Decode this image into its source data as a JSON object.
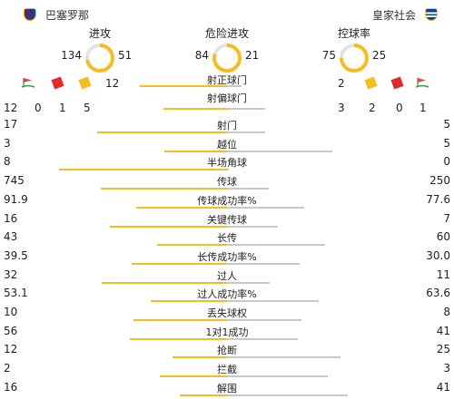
{
  "home_team": {
    "name": "巴塞罗那",
    "crest": "fc-barcelona-crest-icon"
  },
  "away_team": {
    "name": "皇家社会",
    "crest": "real-sociedad-crest-icon"
  },
  "colors": {
    "home": "#f5bd1f",
    "away": "#c8c8c8",
    "gauge_track": "#e3e3e3"
  },
  "gauges": [
    {
      "label": "进攻",
      "home": 134,
      "away": 51
    },
    {
      "label": "危险进攻",
      "home": 84,
      "away": 21
    },
    {
      "label": "控球率",
      "home": 75,
      "away": 25
    }
  ],
  "shots_on_target": {
    "label": "射正球门",
    "home": 12,
    "away": 2
  },
  "shots_off_target": {
    "label": "射偏球门",
    "home": 5,
    "away": 3
  },
  "cards_corners": {
    "home": {
      "corners": 12,
      "red": 0,
      "yellow": 1
    },
    "away": {
      "corners": 1,
      "red": 0,
      "yellow": 2
    }
  },
  "stats": [
    {
      "label": "射门",
      "home": "17",
      "away": "5"
    },
    {
      "label": "越位",
      "home": "3",
      "away": "5"
    },
    {
      "label": "半场角球",
      "home": "8",
      "away": "0"
    },
    {
      "label": "传球",
      "home": "745",
      "away": "250"
    },
    {
      "label": "传球成功率%",
      "home": "91.9",
      "away": "77.6"
    },
    {
      "label": "关键传球",
      "home": "16",
      "away": "7"
    },
    {
      "label": "长传",
      "home": "43",
      "away": "60"
    },
    {
      "label": "长传成功率%",
      "home": "39.5",
      "away": "30.0"
    },
    {
      "label": "过人",
      "home": "32",
      "away": "11"
    },
    {
      "label": "过人成功率%",
      "home": "53.1",
      "away": "63.6"
    },
    {
      "label": "丢失球权",
      "home": "10",
      "away": "8"
    },
    {
      "label": "1对1成功",
      "home": "56",
      "away": "41"
    },
    {
      "label": "抢断",
      "home": "12",
      "away": "25"
    },
    {
      "label": "拦截",
      "home": "2",
      "away": "3"
    },
    {
      "label": "解围",
      "home": "16",
      "away": "41"
    }
  ]
}
